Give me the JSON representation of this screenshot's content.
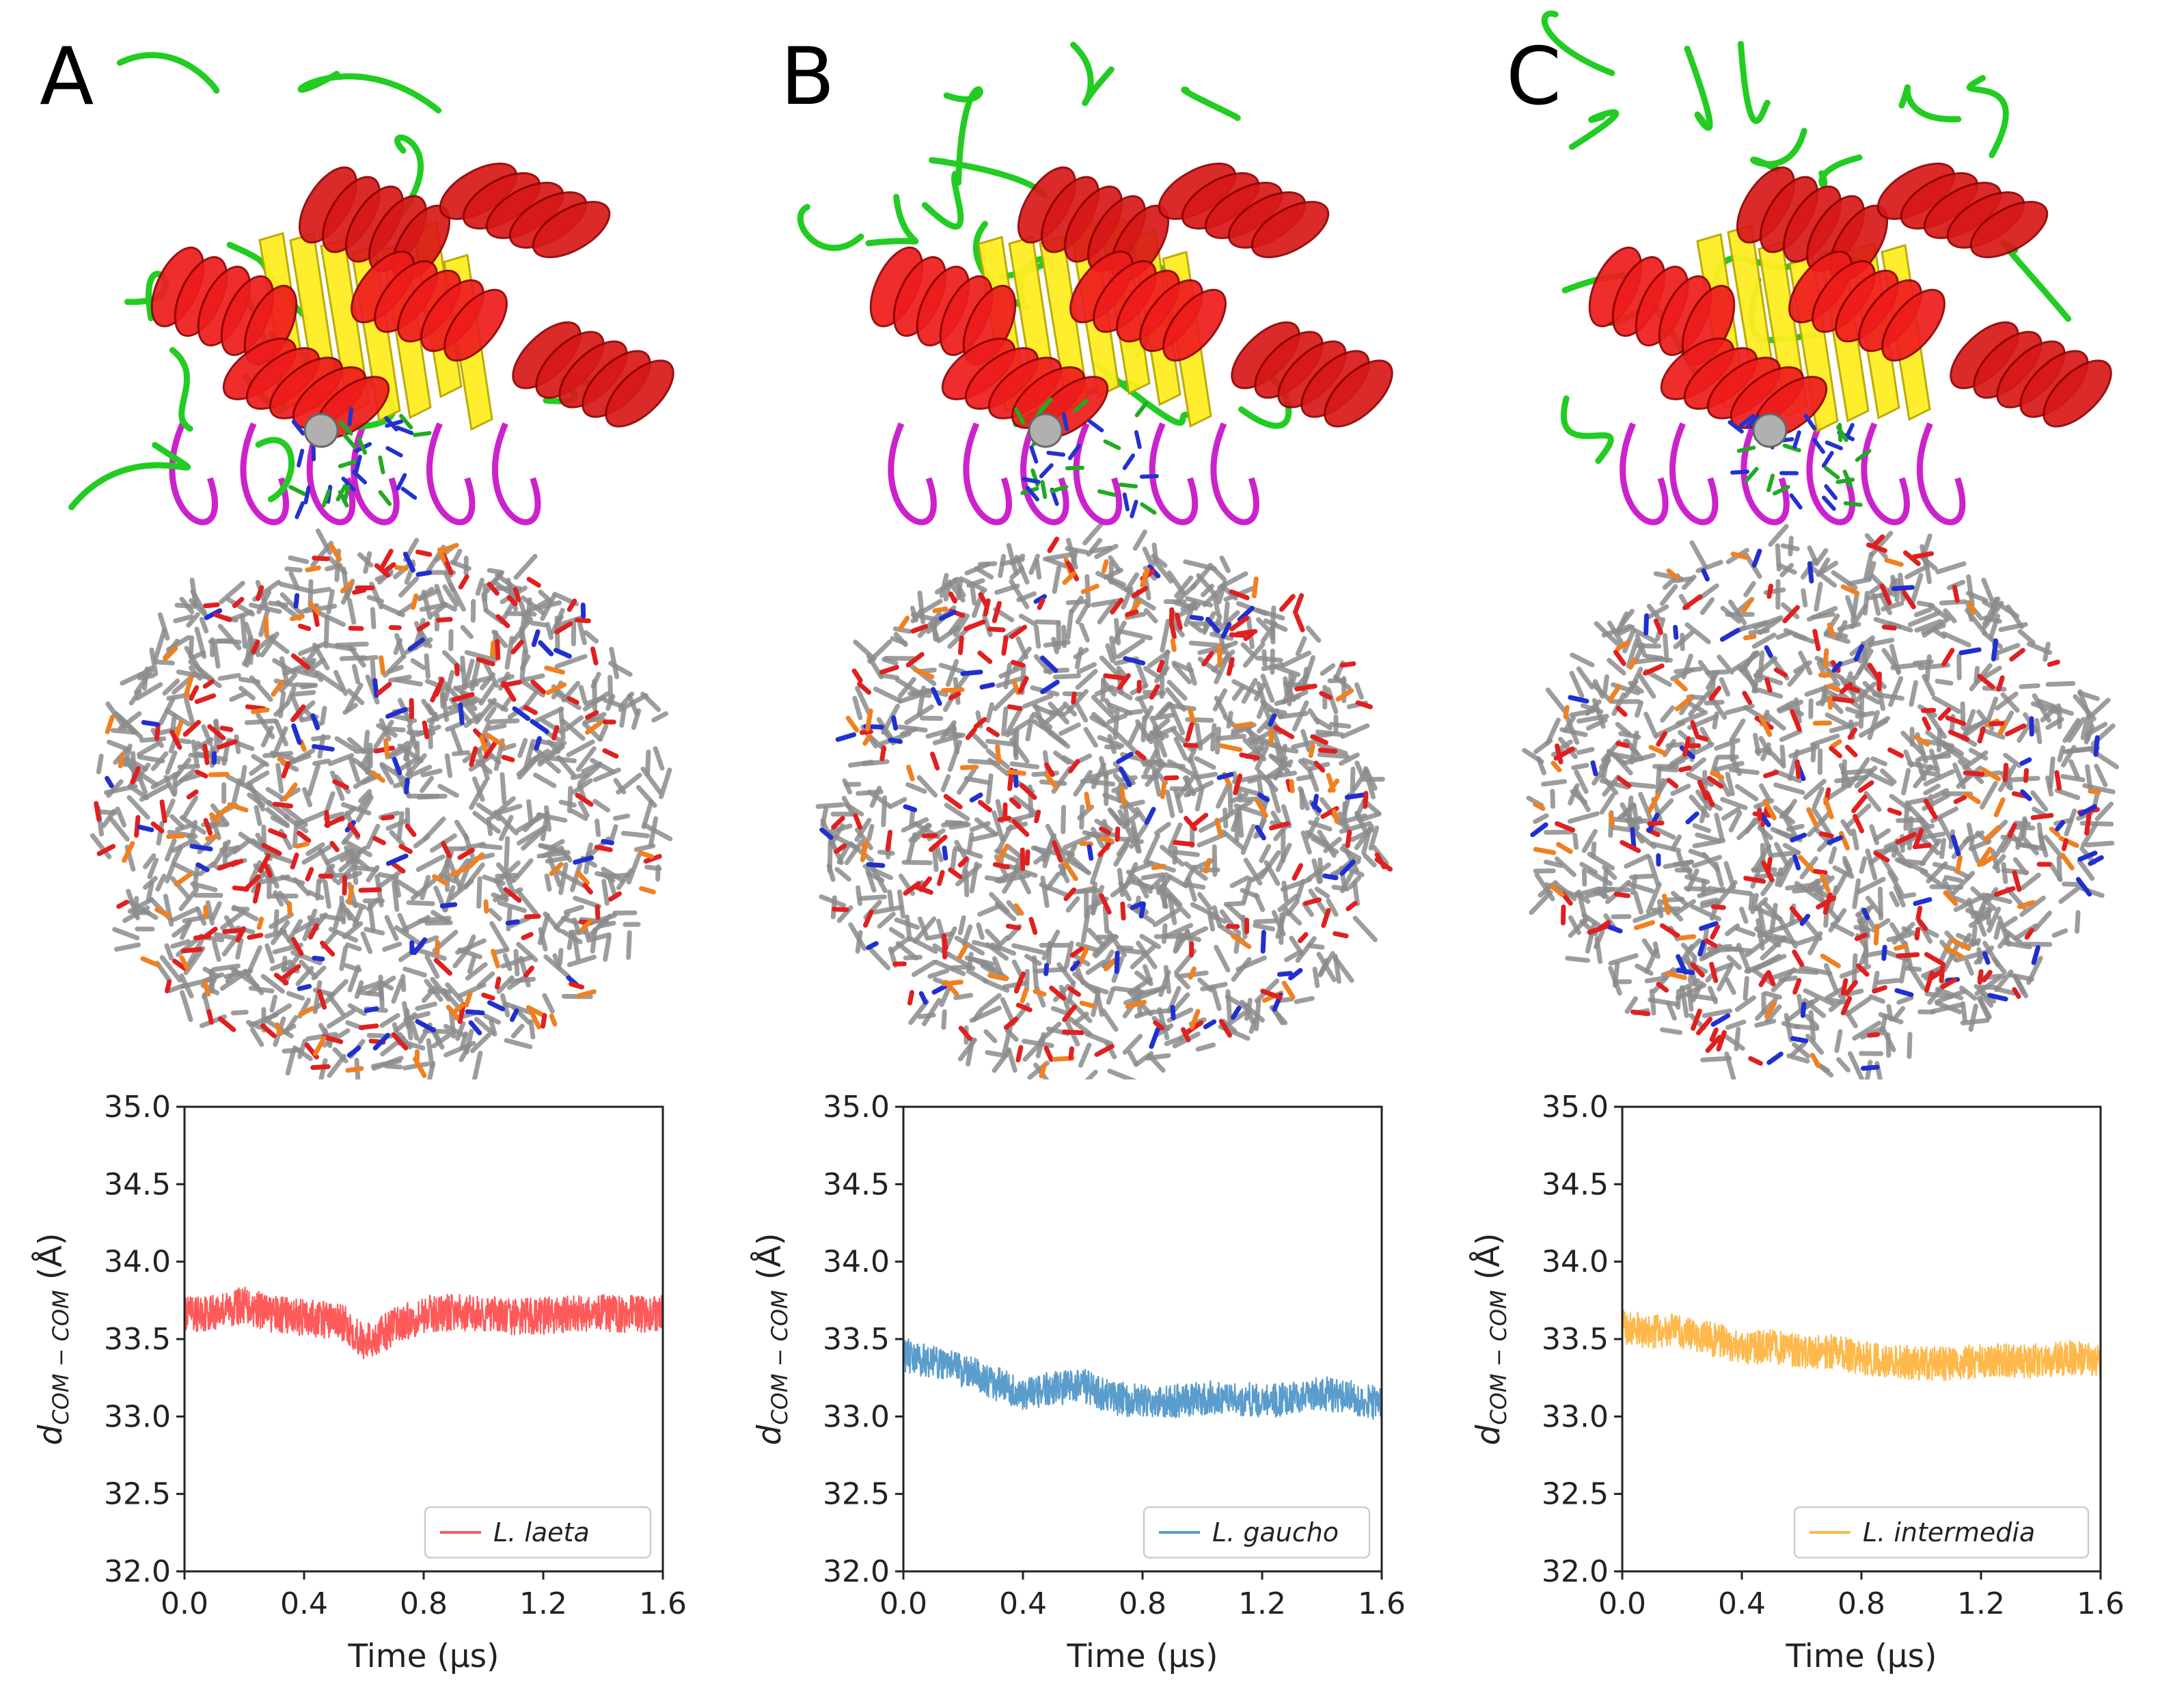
{
  "panels": [
    {
      "letter": "A",
      "series_color": "#ff5a5a",
      "legend": "L. laeta"
    },
    {
      "letter": "B",
      "series_color": "#5a9ccc",
      "legend": "L. gaucho"
    },
    {
      "letter": "C",
      "series_color": "#ffb84a",
      "legend": "L. intermedia"
    }
  ],
  "axes": {
    "xlabel": "Time (μs)",
    "ylabel": "d",
    "ylabel_sub": "COM − COM",
    "ylabel_unit": " (Å)",
    "xticks": [
      "0.0",
      "0.4",
      "0.8",
      "1.2",
      "1.6"
    ],
    "yticks": [
      "32.0",
      "32.5",
      "33.0",
      "33.5",
      "34.0",
      "34.5",
      "35.0"
    ]
  },
  "chart_data": [
    {
      "type": "line",
      "xlabel": "Time (μs)",
      "ylabel": "dCOM−COM (Å)",
      "xlim": [
        0,
        1.6
      ],
      "ylim": [
        32.0,
        35.0
      ],
      "series": [
        {
          "name": "L. laeta",
          "color": "#ff5a5a",
          "x": [
            0.0,
            0.1,
            0.2,
            0.3,
            0.4,
            0.5,
            0.55,
            0.6,
            0.65,
            0.7,
            0.8,
            0.9,
            1.0,
            1.1,
            1.2,
            1.3,
            1.4,
            1.5,
            1.6
          ],
          "y": [
            33.65,
            33.68,
            33.72,
            33.66,
            33.64,
            33.62,
            33.58,
            33.48,
            33.52,
            33.58,
            33.66,
            33.67,
            33.66,
            33.64,
            33.65,
            33.66,
            33.67,
            33.66,
            33.66
          ],
          "noise": 0.12
        }
      ],
      "legend_loc": "lower right"
    },
    {
      "type": "line",
      "xlabel": "Time (μs)",
      "ylabel": "dCOM−COM (Å)",
      "xlim": [
        0,
        1.6
      ],
      "ylim": [
        32.0,
        35.0
      ],
      "series": [
        {
          "name": "L. gaucho",
          "color": "#5a9ccc",
          "x": [
            0.0,
            0.1,
            0.2,
            0.3,
            0.4,
            0.5,
            0.6,
            0.7,
            0.8,
            0.9,
            1.0,
            1.1,
            1.2,
            1.3,
            1.4,
            1.5,
            1.6
          ],
          "y": [
            33.4,
            33.35,
            33.3,
            33.22,
            33.15,
            33.18,
            33.2,
            33.12,
            33.1,
            33.1,
            33.12,
            33.12,
            33.1,
            33.11,
            33.15,
            33.12,
            33.08
          ],
          "noise": 0.11
        }
      ],
      "legend_loc": "lower right"
    },
    {
      "type": "line",
      "xlabel": "Time (μs)",
      "ylabel": "dCOM−COM (Å)",
      "xlim": [
        0,
        1.6
      ],
      "ylim": [
        32.0,
        35.0
      ],
      "series": [
        {
          "name": "L. intermedia",
          "color": "#ffb84a",
          "x": [
            0.0,
            0.1,
            0.2,
            0.3,
            0.4,
            0.5,
            0.6,
            0.7,
            0.8,
            0.9,
            1.0,
            1.1,
            1.2,
            1.3,
            1.4,
            1.5,
            1.6
          ],
          "y": [
            33.58,
            33.55,
            33.55,
            33.5,
            33.45,
            33.45,
            33.42,
            33.42,
            33.38,
            33.36,
            33.34,
            33.34,
            33.36,
            33.36,
            33.36,
            33.38,
            33.36
          ],
          "noise": 0.11
        }
      ],
      "legend_loc": "lower right"
    }
  ]
}
